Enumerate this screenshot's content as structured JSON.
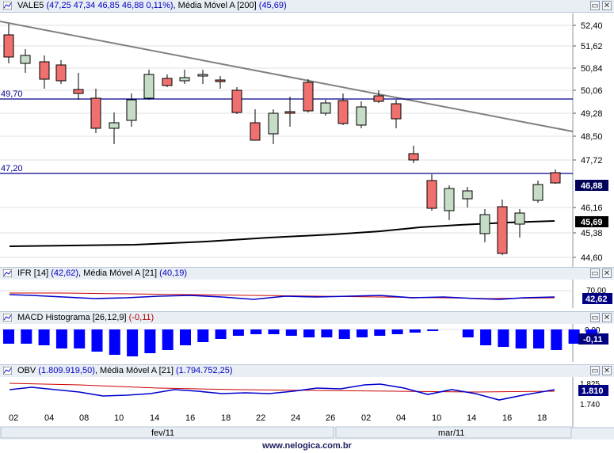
{
  "price_panel": {
    "title_prefix": "VALE5 ",
    "ohlc": "(47,25  47,34  46,85  46,88  0,11%)",
    "ma_label": ", Média Móvel A [200] ",
    "ma_value": "(45,69)",
    "y_ticks": [
      "52,40",
      "51,62",
      "50,84",
      "50,06",
      "49,28",
      "48,50",
      "47,72",
      "46,16",
      "45,38",
      "44,60"
    ],
    "level_high": "49,70",
    "level_low": "47,20",
    "last_price_badge": "46,88",
    "ma_badge": "45,69"
  },
  "ifr_panel": {
    "title_prefix": "IFR [14] ",
    "value": "(42,62)",
    "ma_label": ", Média Móvel A [21] ",
    "ma_value": "(40,19)",
    "y_tick": "70,00",
    "badge": "42,62"
  },
  "macd_panel": {
    "title_prefix": "MACD Histograma [26,12,9] ",
    "value": "(-0,11)",
    "y_tick": "0,00",
    "badge": "-0,11"
  },
  "obv_panel": {
    "title_prefix": "OBV ",
    "value": "(1.809.919,50)",
    "ma_label": ", Média Móvel A [21] ",
    "ma_value": "(1.794.752,25)",
    "y_tick_top": "1.825",
    "y_tick_bottom": "1.740",
    "badge": "1.810"
  },
  "x_axis": {
    "day_labels": [
      "02",
      "04",
      "08",
      "10",
      "14",
      "16",
      "18",
      "22",
      "24",
      "26",
      "02",
      "04",
      "10",
      "14",
      "16",
      "18"
    ],
    "months": [
      "fev/11",
      "mar/11"
    ]
  },
  "footer": "www.nelogica.com.br",
  "colors": {
    "up_candle": "#c6dcc6",
    "down_candle": "#f07070",
    "trendline": "#808080",
    "level_line": "#00008b",
    "moving_average": "#000000",
    "indicator_line": "#0000cc",
    "indicator_ma": "#cc0000",
    "histogram": "#0000ff"
  },
  "icons": [
    "chart-icon",
    "maximize-icon",
    "close-icon"
  ]
}
